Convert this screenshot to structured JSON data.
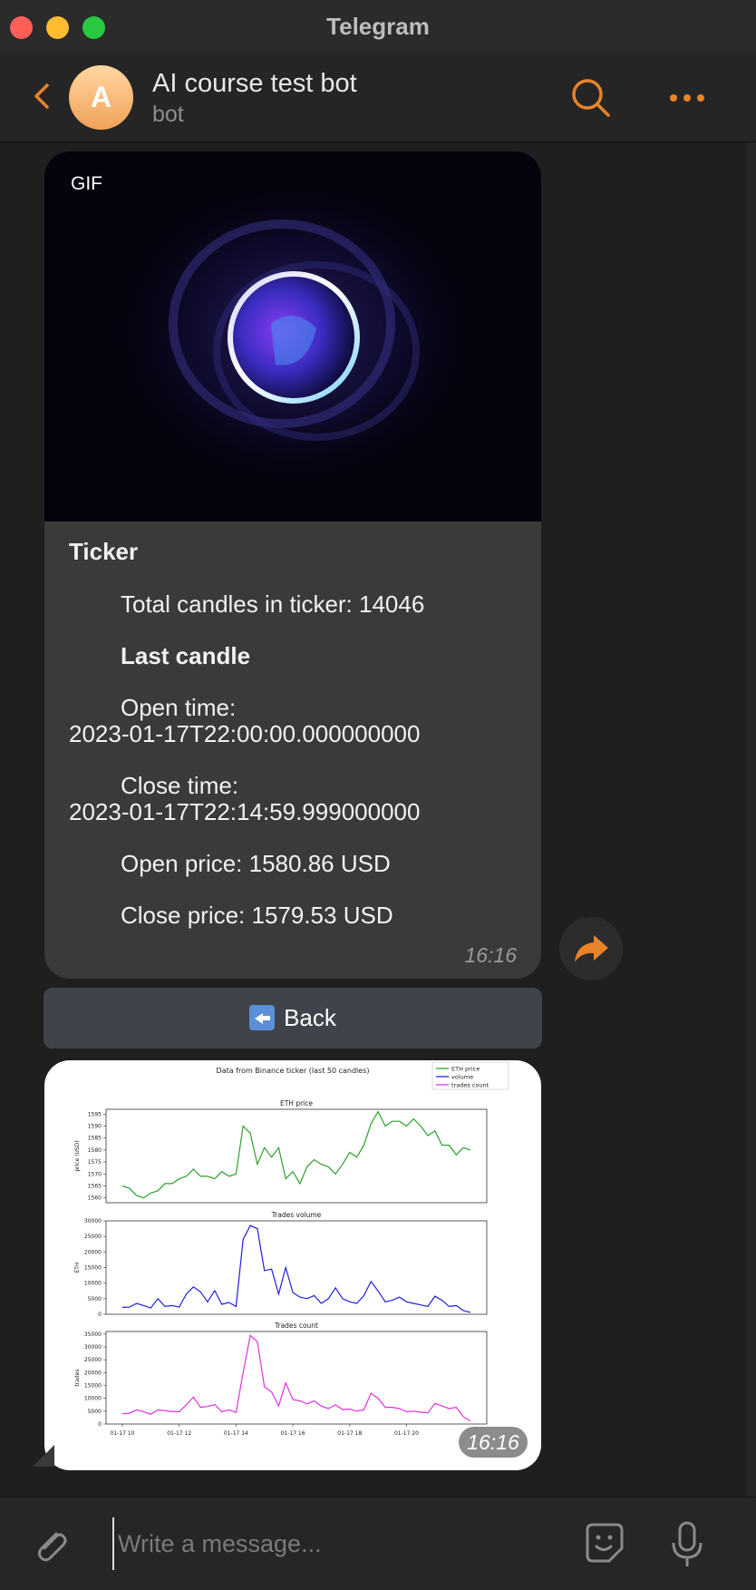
{
  "window": {
    "title": "Telegram"
  },
  "header": {
    "avatar_letter": "A",
    "chat_name": "AI course test bot",
    "chat_subtitle": "bot"
  },
  "message1": {
    "gif_badge": "GIF",
    "heading": "Ticker",
    "total_candles": "Total candles in ticker: 14046",
    "last_candle_heading": "Last candle",
    "open_time_label": "Open time:",
    "open_time_value": "2023-01-17T22:00:00.000000000",
    "close_time_label": "Close time:",
    "close_time_value": "2023-01-17T22:14:59.999000000",
    "open_price": "Open price: 1580.86 USD",
    "close_price": "Close price: 1579.53 USD",
    "time": "16:16"
  },
  "keyboard": {
    "back_label": "Back"
  },
  "message2": {
    "time": "16:16"
  },
  "composer": {
    "placeholder": "Write a message..."
  },
  "colors": {
    "accent": "#e8832a",
    "bubble": "#3a3a3a",
    "eth": "#2ca02c",
    "volume": "#1f1fe0",
    "trades": "#e02fe0"
  },
  "chart_data": {
    "type": "line",
    "title": "Data from Binance ticker (last 50 candles)",
    "legend": [
      "ETH price",
      "volume",
      "trades count"
    ],
    "legend_position": "top-right",
    "x_ticks": [
      "01-17 10",
      "01-17 12",
      "01-17 14",
      "01-17 16",
      "01-17 18",
      "01-17 20"
    ],
    "panels": [
      {
        "title": "ETH price",
        "ylabel": "price (USD)",
        "ylim": [
          1558,
          1597
        ],
        "yticks": [
          1560,
          1565,
          1570,
          1575,
          1580,
          1585,
          1590,
          1595
        ],
        "color": "#2ca02c",
        "values": [
          1565,
          1564,
          1561,
          1560,
          1562,
          1563,
          1566,
          1566,
          1568,
          1569,
          1572,
          1569,
          1569,
          1568,
          1571,
          1569,
          1570,
          1590,
          1587,
          1574,
          1581,
          1577,
          1581,
          1568,
          1571,
          1566,
          1573,
          1576,
          1574,
          1573,
          1570,
          1574,
          1579,
          1577,
          1582,
          1591,
          1596,
          1590,
          1592,
          1592,
          1590,
          1593,
          1590,
          1586,
          1588,
          1582,
          1582,
          1578,
          1581,
          1580
        ]
      },
      {
        "title": "Trades volume",
        "ylabel": "ETH",
        "ylim": [
          0,
          30000
        ],
        "yticks": [
          0,
          5000,
          10000,
          15000,
          20000,
          25000,
          30000
        ],
        "color": "#1f1fe0",
        "values": [
          2200,
          2300,
          3500,
          2800,
          2000,
          5000,
          2500,
          2800,
          2300,
          6500,
          8800,
          7200,
          4000,
          7600,
          3200,
          3800,
          2500,
          24000,
          28500,
          27500,
          14000,
          14500,
          6500,
          15000,
          7000,
          5500,
          5000,
          6000,
          3500,
          5000,
          8500,
          5000,
          4000,
          3500,
          6000,
          10500,
          7500,
          4000,
          4500,
          5500,
          4000,
          3500,
          3000,
          2500,
          5800,
          4500,
          2500,
          2800,
          1200,
          600
        ]
      },
      {
        "title": "Trades count",
        "ylabel": "trades",
        "ylim": [
          0,
          36000
        ],
        "yticks": [
          0,
          5000,
          10000,
          15000,
          20000,
          25000,
          30000,
          35000
        ],
        "color": "#e02fe0",
        "values": [
          4000,
          4200,
          5500,
          4800,
          3800,
          5500,
          5200,
          4800,
          4800,
          7500,
          10500,
          6500,
          6800,
          7600,
          4800,
          5500,
          4500,
          20000,
          34500,
          32000,
          14500,
          12500,
          7000,
          16000,
          9500,
          9000,
          7800,
          9000,
          7000,
          6000,
          7500,
          5600,
          5800,
          5000,
          5500,
          12000,
          10000,
          6500,
          6500,
          6000,
          4800,
          5000,
          4600,
          4300,
          8000,
          7000,
          6000,
          6500,
          2800,
          1200
        ]
      }
    ]
  }
}
